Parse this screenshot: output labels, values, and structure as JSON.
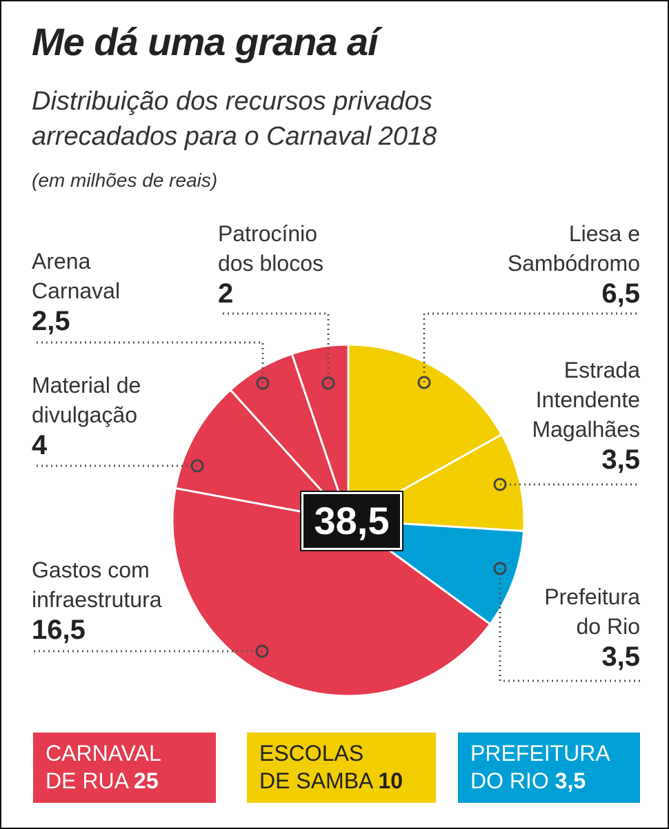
{
  "chart_data": {
    "type": "pie",
    "title": "Me dá uma grana aí",
    "subtitle": "Distribuição dos recursos privados\narrecadados para o Carnaval 2018",
    "unit_note": "(em milhões de reais)",
    "categories": [
      "Liesa e\nSambódromo",
      "Estrada\nIntendente\nMagalhães",
      "Prefeitura\ndo Rio",
      "Gastos com\ninfraestrutura",
      "Material de\ndivulgação",
      "Arena\nCarnaval",
      "Patrocínio\ndos blocos"
    ],
    "values": [
      6.5,
      3.5,
      3.5,
      16.5,
      4,
      2.5,
      2
    ],
    "value_labels": [
      "6,5",
      "3,5",
      "3,5",
      "16,5",
      "4",
      "2,5",
      "2"
    ],
    "colors": [
      "#f2cd00",
      "#f2cd00",
      "#00a0d6",
      "#e43b4f",
      "#e43b4f",
      "#e43b4f",
      "#e43b4f"
    ],
    "total": {
      "value": 38.5,
      "label": "38,5"
    },
    "groups": [
      {
        "name": "CARNAVAL\nDE RUA",
        "value": 25,
        "value_label": "25",
        "color": "#e43b4f",
        "text_color": "#ffffff"
      },
      {
        "name": "ESCOLAS\nDE SAMBA",
        "value": 10,
        "value_label": "10",
        "color": "#f2cd00",
        "text_color": "#222222"
      },
      {
        "name": "PREFEITURA\nDO RIO",
        "value": 3.5,
        "value_label": "3,5",
        "color": "#00a0d6",
        "text_color": "#ffffff"
      }
    ]
  }
}
